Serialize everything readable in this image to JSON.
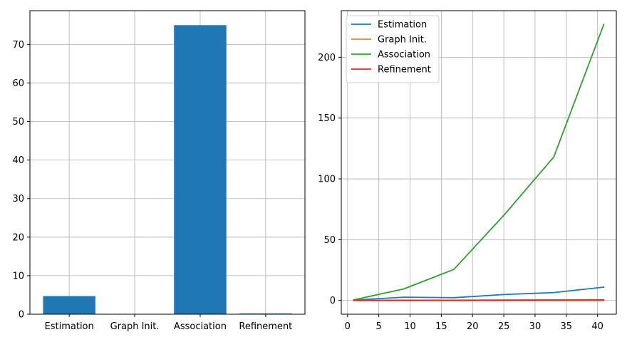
{
  "chart_data": [
    {
      "type": "bar",
      "categories": [
        "Estimation",
        "Graph Init.",
        "Association",
        "Refinement"
      ],
      "values": [
        4.7,
        0.0,
        75.0,
        0.2
      ],
      "color": "#1f77b4",
      "ylim": [
        0,
        78.75
      ],
      "yticks": [
        0,
        10,
        20,
        30,
        40,
        50,
        60,
        70
      ],
      "grid": true
    },
    {
      "type": "line",
      "x": [
        1,
        9,
        17,
        25,
        33,
        41
      ],
      "series": [
        {
          "name": "Estimation",
          "color": "#1f77b4",
          "values": [
            0.3,
            2.7,
            2.3,
            4.9,
            6.5,
            11.0
          ]
        },
        {
          "name": "Graph Init.",
          "color": "#ff7f0e",
          "values": [
            0.0,
            0.0,
            0.0,
            0.0,
            0.0,
            0.0
          ]
        },
        {
          "name": "Association",
          "color": "#2ca02c",
          "values": [
            0.5,
            9.5,
            25.5,
            70.0,
            118.0,
            227.0
          ]
        },
        {
          "name": "Refinement",
          "color": "#d62728",
          "values": [
            0.1,
            0.2,
            0.2,
            0.3,
            0.4,
            0.5
          ]
        }
      ],
      "xlim": [
        -1,
        43
      ],
      "ylim": [
        -11.3,
        238.3
      ],
      "xticks": [
        0,
        5,
        10,
        15,
        20,
        25,
        30,
        35,
        40
      ],
      "yticks": [
        0,
        50,
        100,
        150,
        200
      ],
      "grid": true,
      "legend": "upper-left"
    }
  ]
}
